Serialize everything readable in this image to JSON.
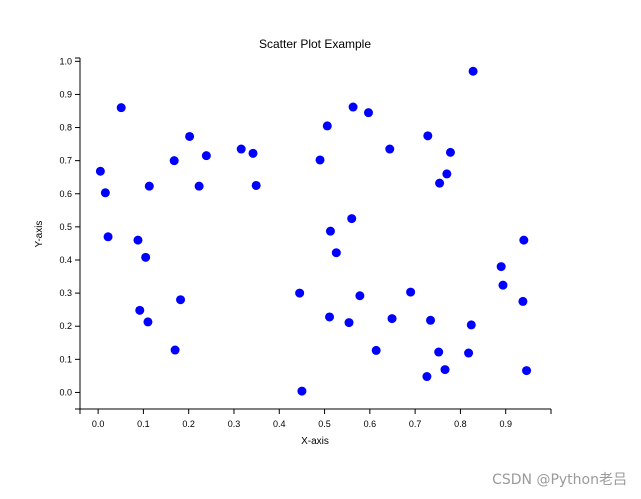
{
  "chart_data": {
    "type": "scatter",
    "title": "Scatter Plot Example",
    "xlabel": "X-axis",
    "ylabel": "Y-axis",
    "xlim": [
      -0.04,
      1.0
    ],
    "ylim": [
      -0.05,
      1.01
    ],
    "xticks": [
      "0.0",
      "0.1",
      "0.2",
      "0.3",
      "0.4",
      "0.5",
      "0.6",
      "0.7",
      "0.8",
      "0.9"
    ],
    "yticks": [
      "0.0",
      "0.1",
      "0.2",
      "0.3",
      "0.4",
      "0.5",
      "0.6",
      "0.7",
      "0.8",
      "0.9",
      "1.0"
    ],
    "grid": false,
    "marker_color": "#0000ff",
    "series": [
      {
        "points": [
          [
            0.005,
            0.668
          ],
          [
            0.016,
            0.603
          ],
          [
            0.022,
            0.47
          ],
          [
            0.051,
            0.86
          ],
          [
            0.088,
            0.46
          ],
          [
            0.092,
            0.248
          ],
          [
            0.105,
            0.408
          ],
          [
            0.11,
            0.213
          ],
          [
            0.113,
            0.623
          ],
          [
            0.168,
            0.7
          ],
          [
            0.17,
            0.128
          ],
          [
            0.182,
            0.28
          ],
          [
            0.202,
            0.773
          ],
          [
            0.223,
            0.623
          ],
          [
            0.239,
            0.715
          ],
          [
            0.316,
            0.735
          ],
          [
            0.342,
            0.722
          ],
          [
            0.349,
            0.625
          ],
          [
            0.445,
            0.3
          ],
          [
            0.45,
            0.004
          ],
          [
            0.49,
            0.702
          ],
          [
            0.506,
            0.805
          ],
          [
            0.511,
            0.228
          ],
          [
            0.513,
            0.487
          ],
          [
            0.526,
            0.422
          ],
          [
            0.554,
            0.211
          ],
          [
            0.56,
            0.525
          ],
          [
            0.563,
            0.862
          ],
          [
            0.578,
            0.292
          ],
          [
            0.597,
            0.845
          ],
          [
            0.614,
            0.127
          ],
          [
            0.644,
            0.735
          ],
          [
            0.649,
            0.223
          ],
          [
            0.69,
            0.303
          ],
          [
            0.726,
            0.048
          ],
          [
            0.728,
            0.775
          ],
          [
            0.734,
            0.218
          ],
          [
            0.752,
            0.122
          ],
          [
            0.754,
            0.632
          ],
          [
            0.766,
            0.069
          ],
          [
            0.77,
            0.66
          ],
          [
            0.778,
            0.725
          ],
          [
            0.818,
            0.119
          ],
          [
            0.824,
            0.204
          ],
          [
            0.828,
            0.97
          ],
          [
            0.89,
            0.38
          ],
          [
            0.894,
            0.324
          ],
          [
            0.938,
            0.275
          ],
          [
            0.94,
            0.46
          ],
          [
            0.946,
            0.066
          ]
        ]
      }
    ]
  },
  "watermark": "CSDN @Python老吕"
}
